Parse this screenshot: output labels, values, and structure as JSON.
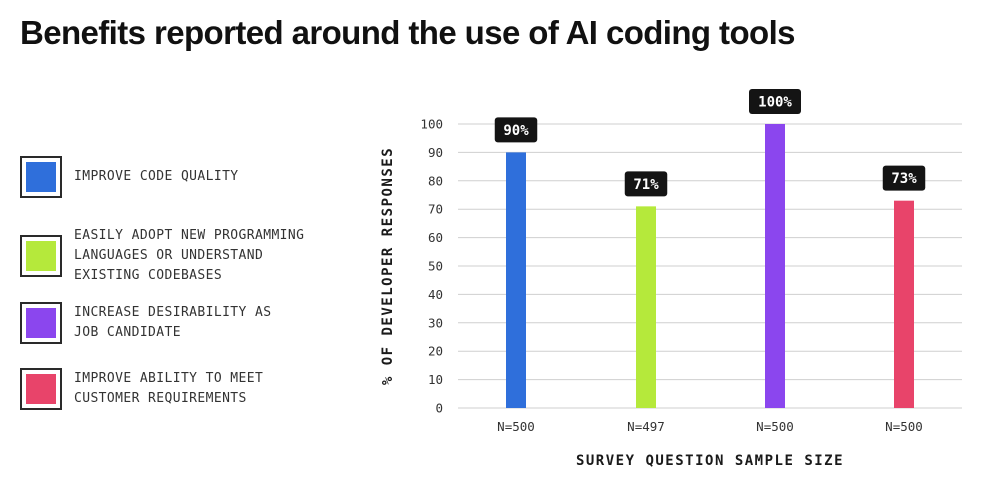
{
  "title": "Benefits reported around the use of AI coding tools",
  "legend": [
    {
      "label": "IMPROVE CODE QUALITY",
      "color": "#2f6fdb"
    },
    {
      "label": "EASILY ADOPT NEW PROGRAMMING\nLANGUAGES OR UNDERSTAND\nEXISTING CODEBASES",
      "color": "#b5e93b"
    },
    {
      "label": "INCREASE DESIRABILITY AS\nJOB CANDIDATE",
      "color": "#8b46ee"
    },
    {
      "label": "IMPROVE ABILITY TO MEET\nCUSTOMER REQUIREMENTS",
      "color": "#e8446a"
    }
  ],
  "chart_data": {
    "type": "bar",
    "categories": [
      "N=500",
      "N=497",
      "N=500",
      "N=500"
    ],
    "values": [
      90,
      71,
      100,
      73
    ],
    "data_labels": [
      "90%",
      "71%",
      "100%",
      "73%"
    ],
    "colors": [
      "#2f6fdb",
      "#b5e93b",
      "#8b46ee",
      "#e8446a"
    ],
    "xlabel": "SURVEY QUESTION SAMPLE SIZE",
    "ylabel": "% OF DEVELOPER RESPONSES",
    "ylim": [
      0,
      100
    ],
    "yticks": [
      0,
      10,
      20,
      30,
      40,
      50,
      60,
      70,
      80,
      90,
      100
    ],
    "grid": true
  }
}
